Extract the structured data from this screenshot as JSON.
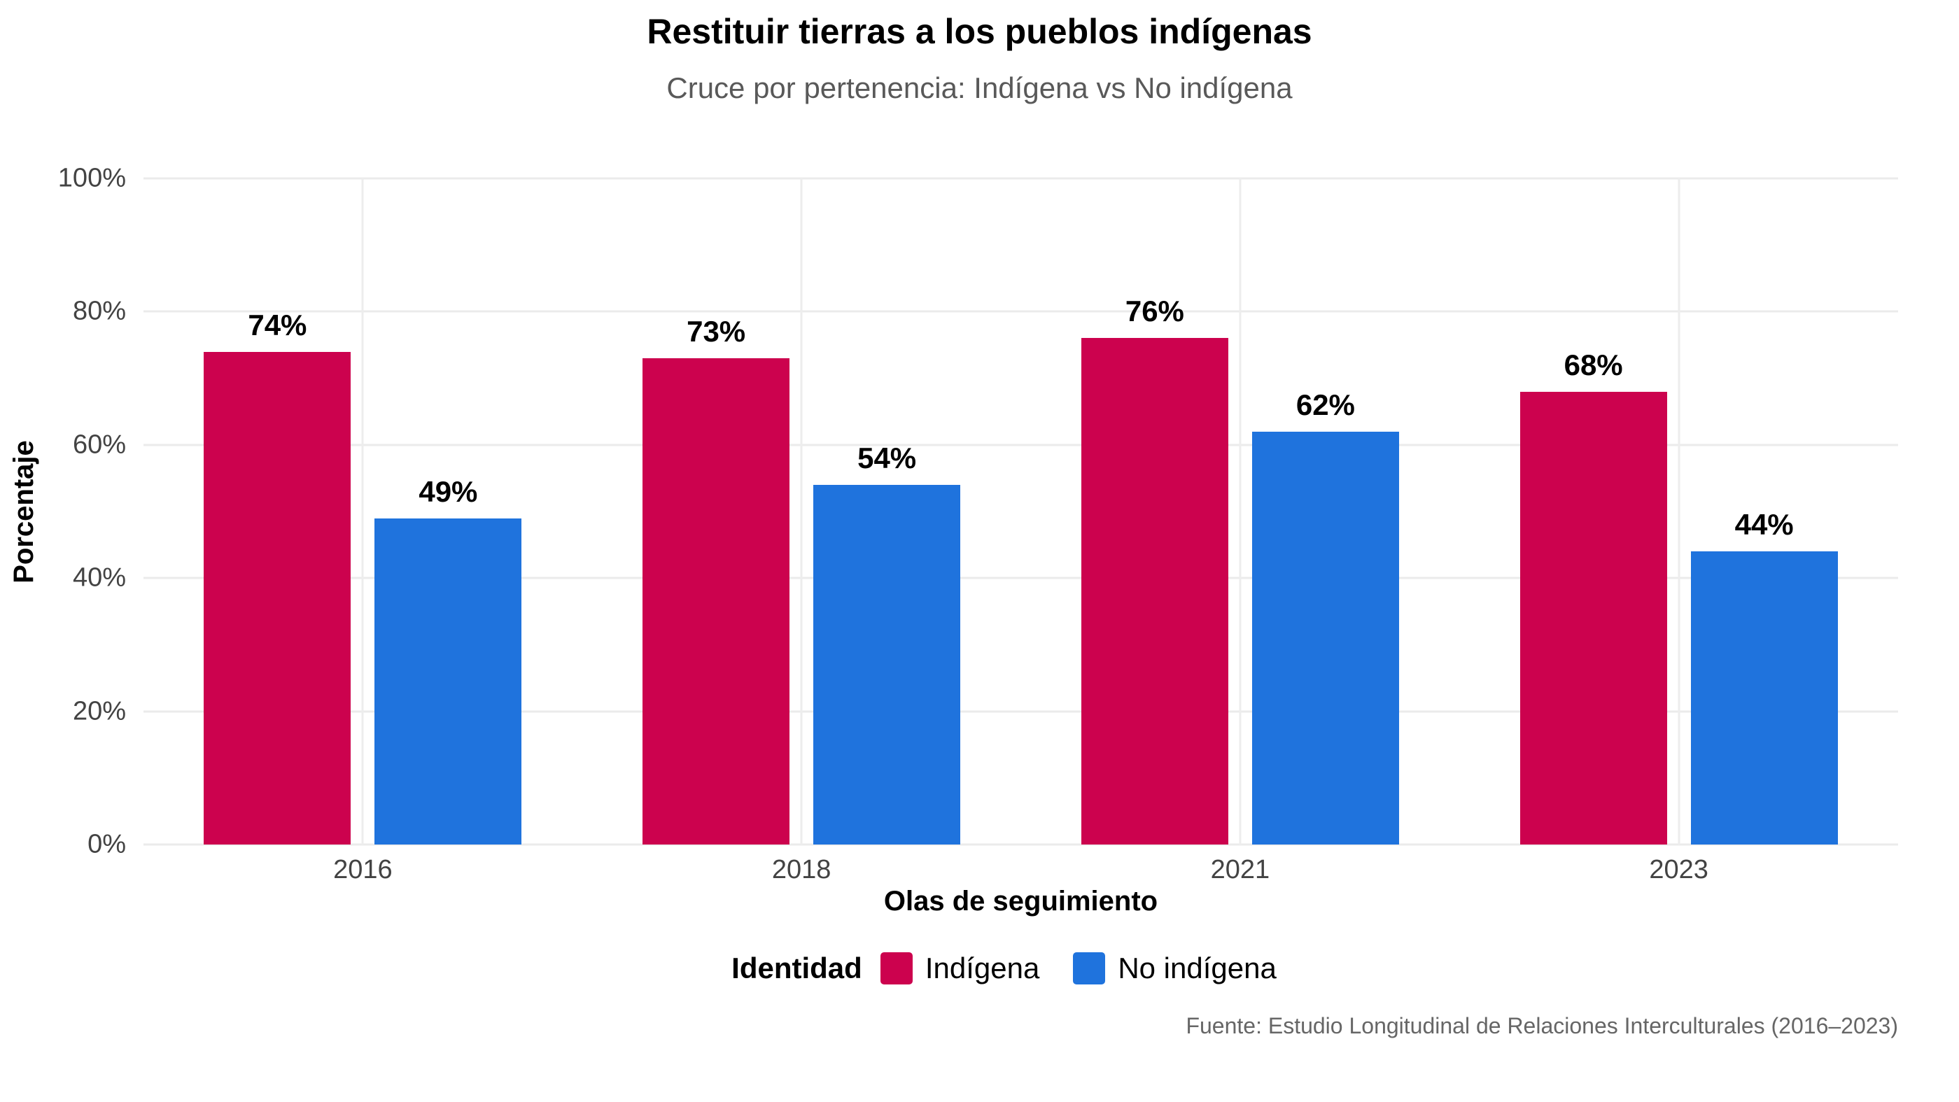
{
  "title": "Restituir tierras a los pueblos indígenas",
  "subtitle": "Cruce por pertenencia: Indígena vs No indígena",
  "caption": "Fuente: Estudio Longitudinal de Relaciones Interculturales (2016–2023)",
  "axes": {
    "x_title": "Olas de seguimiento",
    "y_title": "Porcentaje"
  },
  "legend": {
    "title": "Identidad",
    "items": [
      {
        "label": "Indígena",
        "color": "#CC024E"
      },
      {
        "label": "No indígena",
        "color": "#1F73DD"
      }
    ]
  },
  "colors": {
    "indigena": "#CC024E",
    "no_indigena": "#1F73DD",
    "gridline": "#EBEBEB",
    "tick_text": "#434343",
    "subtitle_text": "#595959",
    "caption_text": "#666666",
    "background": "#FFFFFF"
  },
  "chart_data": {
    "type": "bar",
    "title": "Restituir tierras a los pueblos indígenas",
    "subtitle": "Cruce por pertenencia: Indígena vs No indígena",
    "categories": [
      "2016",
      "2018",
      "2021",
      "2023"
    ],
    "series": [
      {
        "name": "Indígena",
        "color": "#CC024E",
        "values": [
          74,
          73,
          76,
          68
        ]
      },
      {
        "name": "No indígena",
        "color": "#1F73DD",
        "values": [
          49,
          54,
          62,
          44
        ]
      }
    ],
    "value_suffix": "%",
    "xlabel": "Olas de seguimiento",
    "ylabel": "Porcentaje",
    "ylim": [
      0,
      100
    ],
    "yticks": [
      0,
      20,
      40,
      60,
      80,
      100
    ],
    "ytick_suffix": "%",
    "grid": "horizontal-major + vertical-at-category-centers",
    "legend_title": "Identidad",
    "legend_position": "bottom"
  }
}
